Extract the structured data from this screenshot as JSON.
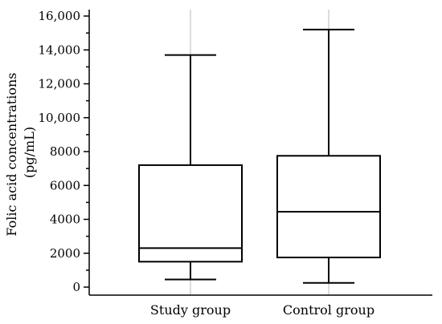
{
  "chart_data": {
    "type": "box",
    "ylabel_line1": "Folic acid concentrations",
    "ylabel_line2": "(pg/mL)",
    "ylim": [
      -400,
      16400
    ],
    "yticks": [
      0,
      2000,
      4000,
      6000,
      8000,
      10000,
      12000,
      14000,
      16000
    ],
    "ytick_labels": [
      "0",
      "2000",
      "4000",
      "6000",
      "8000",
      "10,000",
      "12,000",
      "14,000",
      "16,000"
    ],
    "grid": "vertical at categories",
    "categories": [
      "Study group",
      "Control group"
    ],
    "boxes": [
      {
        "category": "Study group",
        "min": 450,
        "q1": 1500,
        "median": 2300,
        "q3": 7200,
        "max": 13700
      },
      {
        "category": "Control group",
        "min": 250,
        "q1": 1750,
        "median": 4450,
        "q3": 7750,
        "max": 15200
      }
    ]
  }
}
